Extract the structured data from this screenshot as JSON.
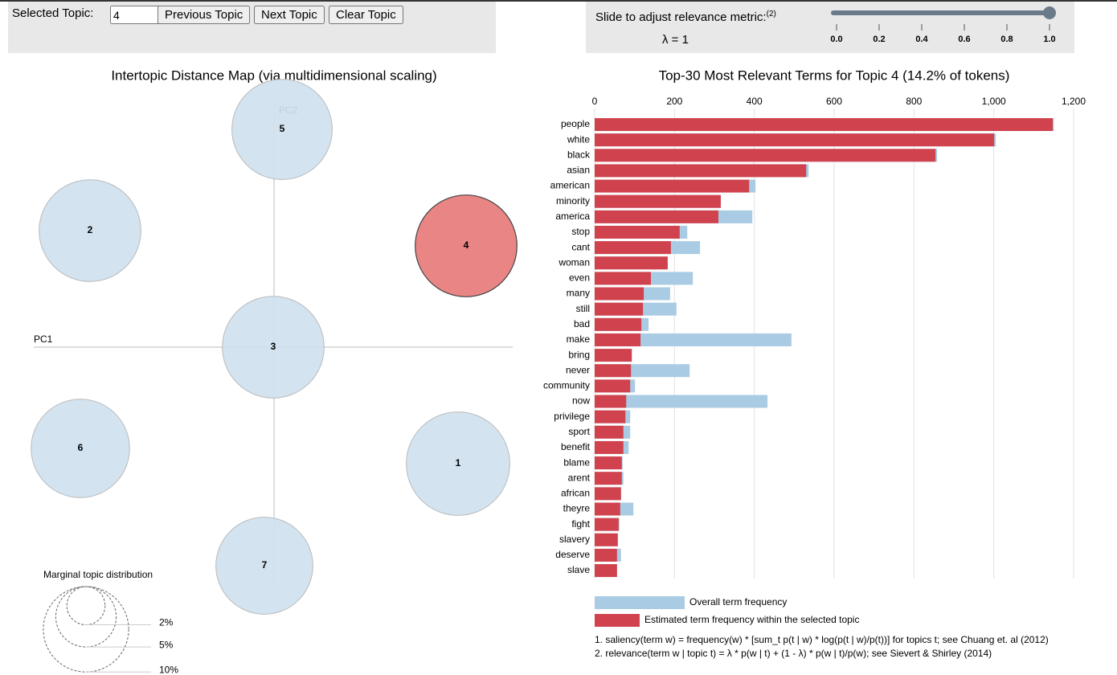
{
  "controls": {
    "selected_label": "Selected Topic:",
    "selected_value": "4",
    "buttons": [
      "Previous Topic",
      "Next Topic",
      "Clear Topic"
    ],
    "slider_label": "Slide to adjust relevance metric:",
    "slider_note": "(2)",
    "lambda_label": "λ = 1",
    "slider_value": 1,
    "slider_ticks": [
      {
        "value": 0,
        "label": "0.0"
      },
      {
        "value": 0.2,
        "label": "0.2"
      },
      {
        "value": 0.4,
        "label": "0.4"
      },
      {
        "value": 0.6,
        "label": "0.6"
      },
      {
        "value": 0.8,
        "label": "0.8"
      },
      {
        "value": 1,
        "label": "1.0"
      }
    ]
  },
  "map": {
    "title": "Intertopic Distance Map (via multidimensional scaling)",
    "pc1": "PC1",
    "pc2": "PC2",
    "topics": [
      {
        "label": "1",
        "percent": 14.7
      },
      {
        "label": "2",
        "percent": 14.2
      },
      {
        "label": "3",
        "percent": 14.2
      },
      {
        "label": "4",
        "percent": 14.2
      },
      {
        "label": "5",
        "percent": 13.8
      },
      {
        "label": "6",
        "percent": 13.3
      },
      {
        "label": "7",
        "percent": 12.9
      }
    ],
    "legend_title": "Marginal topic distribution",
    "legend_sizes": [
      {
        "value": 2,
        "label": "2%"
      },
      {
        "value": 5,
        "label": "5%"
      },
      {
        "value": 10,
        "label": "10%"
      }
    ]
  },
  "chart_data": {
    "type": "bar",
    "title": "Top-30 Most Relevant Terms for Topic 4 (14.2% of tokens)",
    "categories": [
      "people",
      "white",
      "black",
      "asian",
      "american",
      "minority",
      "america",
      "stop",
      "cant",
      "woman",
      "even",
      "many",
      "still",
      "bad",
      "make",
      "bring",
      "never",
      "community",
      "now",
      "privilege",
      "sport",
      "benefit",
      "blame",
      "arent",
      "african",
      "theyre",
      "fight",
      "slavery",
      "deserve",
      "slave"
    ],
    "series": [
      {
        "name": "Overall term frequency",
        "color": "#a9cbe3",
        "values": [
          1150,
          1005,
          858,
          536,
          403,
          316,
          395,
          232,
          264,
          183,
          246,
          189,
          205,
          135,
          493,
          93,
          238,
          101,
          433,
          89,
          89,
          85,
          70,
          72,
          66,
          97,
          62,
          58,
          66,
          56
        ]
      },
      {
        "name": "Estimated term frequency within the selected topic",
        "color": "#d0434e",
        "values": [
          1148,
          1001,
          854,
          530,
          387,
          316,
          310,
          213,
          191,
          183,
          141,
          123,
          121,
          117,
          115,
          93,
          91,
          89,
          79,
          77,
          72,
          72,
          68,
          68,
          66,
          64,
          60,
          58,
          56,
          56
        ]
      }
    ],
    "xlim": [
      0,
      1200
    ],
    "xticks": [
      0,
      200,
      400,
      600,
      800,
      {
        "value": 1000,
        "label": "1,000"
      },
      {
        "value": 1200,
        "label": "1,200"
      }
    ],
    "grid": true
  },
  "footnotes": [
    "1. saliency(term w) = frequency(w) * [sum_t p(t | w) * log(p(t | w)/p(t))] for topics t; see Chuang et. al (2012)",
    "2. relevance(term w | topic t) = λ * p(w | t) + (1 - λ) * p(w | t)/p(w); see Sievert & Shirley (2014)"
  ]
}
